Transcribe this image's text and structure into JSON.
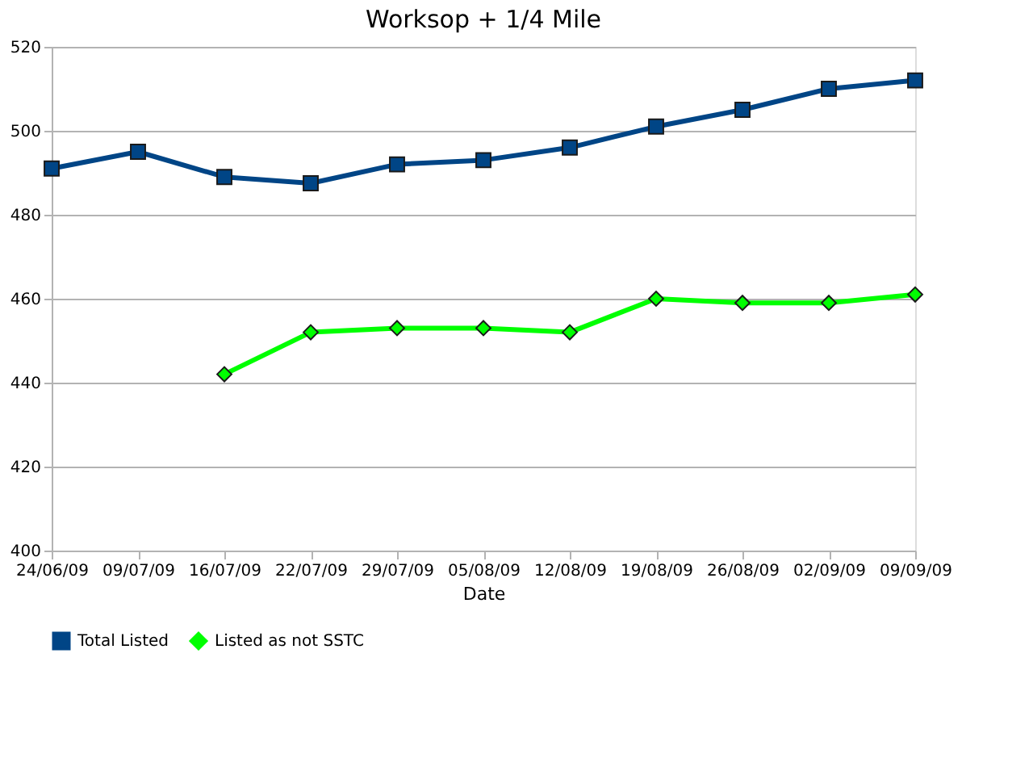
{
  "chart_data": {
    "type": "line",
    "title": "Worksop + 1/4 Mile",
    "xlabel": "Date",
    "categories": [
      "24/06/09",
      "09/07/09",
      "16/07/09",
      "22/07/09",
      "29/07/09",
      "05/08/09",
      "12/08/09",
      "19/08/09",
      "26/08/09",
      "02/09/09",
      "09/09/09"
    ],
    "series": [
      {
        "name": "Total Listed",
        "color": "#004586",
        "marker": "square",
        "values": [
          491,
          495,
          489,
          487.5,
          492,
          493,
          496,
          501,
          505,
          510,
          512
        ]
      },
      {
        "name": "Listed as not SSTC",
        "color": "#00ff00",
        "marker": "diamond",
        "values": [
          null,
          null,
          442,
          452,
          453,
          453,
          452,
          460,
          459,
          459,
          461
        ]
      }
    ],
    "ylim": [
      400,
      520
    ],
    "yticks": [
      400,
      420,
      440,
      460,
      480,
      500,
      520
    ],
    "grid": "y",
    "legend": "bottom"
  }
}
